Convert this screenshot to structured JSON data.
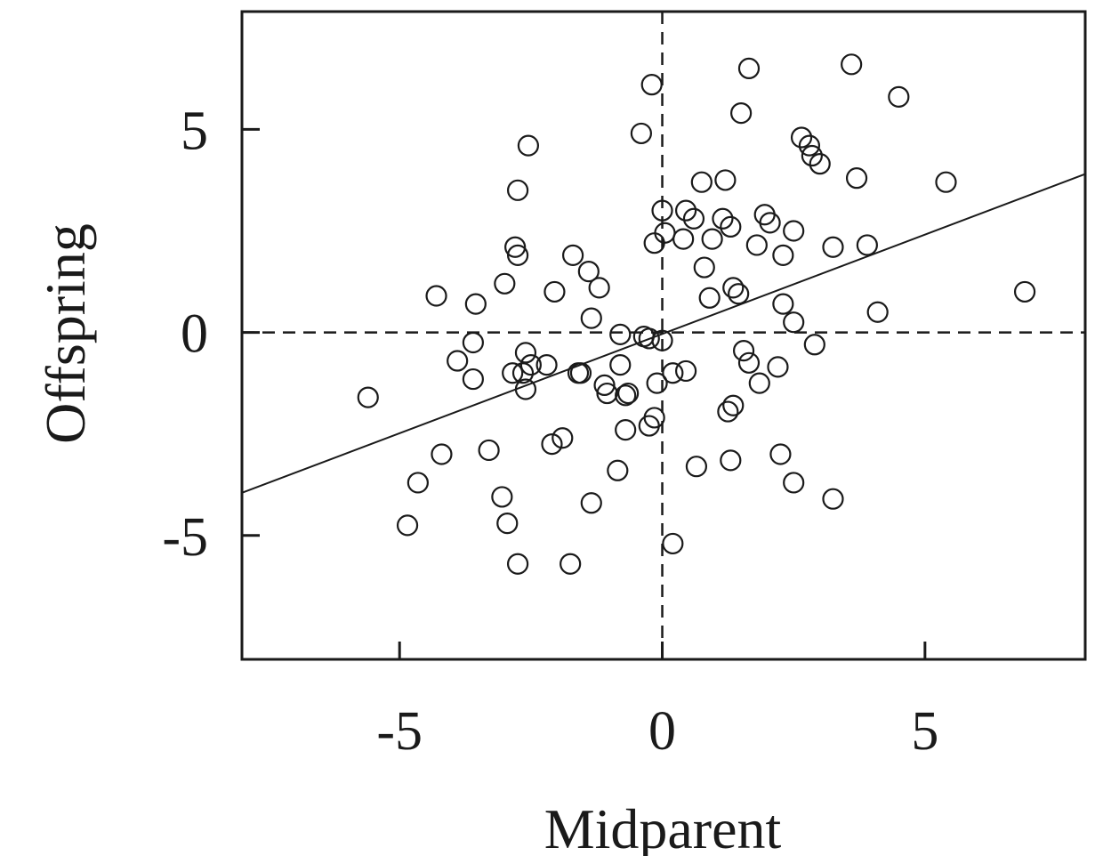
{
  "chart_data": {
    "type": "scatter",
    "title": "",
    "xlabel": "Midparent",
    "ylabel": "Offspring",
    "xlim": [
      -8,
      8.05
    ],
    "ylim": [
      -8.05,
      7.9
    ],
    "xticks": [
      -5,
      0,
      5
    ],
    "yticks": [
      -5,
      0,
      5
    ],
    "xtick_labels": [
      "-5",
      "0",
      "5"
    ],
    "ytick_labels": [
      "-5",
      "0",
      "5"
    ],
    "grid": false,
    "legend": "none",
    "reference_lines": {
      "x": 0,
      "y": 0,
      "style": "dashed"
    },
    "regression_line": {
      "x": [
        -8,
        8.05
      ],
      "y": [
        -3.95,
        3.9
      ]
    },
    "series": [
      {
        "points": [
          [
            -5.6,
            -1.6
          ],
          [
            -4.85,
            -4.75
          ],
          [
            -4.65,
            -3.7
          ],
          [
            -4.3,
            0.9
          ],
          [
            -4.2,
            -3.0
          ],
          [
            -3.9,
            -0.7
          ],
          [
            -3.6,
            -1.15
          ],
          [
            -3.55,
            0.7
          ],
          [
            -3.6,
            -0.25
          ],
          [
            -3.3,
            -2.9
          ],
          [
            -3.05,
            -4.05
          ],
          [
            -2.95,
            -4.7
          ],
          [
            -3.0,
            1.2
          ],
          [
            -2.85,
            -1.0
          ],
          [
            -2.8,
            2.1
          ],
          [
            -2.75,
            1.9
          ],
          [
            -2.75,
            3.5
          ],
          [
            -2.75,
            -5.7
          ],
          [
            -2.65,
            -1.0
          ],
          [
            -2.6,
            -1.4
          ],
          [
            -2.6,
            -0.5
          ],
          [
            -2.55,
            4.6
          ],
          [
            -2.5,
            -0.8
          ],
          [
            -2.2,
            -0.8
          ],
          [
            -2.1,
            -2.75
          ],
          [
            -2.05,
            1.0
          ],
          [
            -1.9,
            -2.6
          ],
          [
            -1.75,
            -5.7
          ],
          [
            -1.7,
            1.9
          ],
          [
            -1.6,
            -1.0
          ],
          [
            -1.55,
            -1.0
          ],
          [
            -1.4,
            1.5
          ],
          [
            -1.35,
            -4.2
          ],
          [
            -1.35,
            0.35
          ],
          [
            -1.2,
            1.1
          ],
          [
            -1.1,
            -1.3
          ],
          [
            -1.05,
            -1.5
          ],
          [
            -0.85,
            -3.4
          ],
          [
            -0.8,
            -0.05
          ],
          [
            -0.8,
            -0.8
          ],
          [
            -0.7,
            -1.55
          ],
          [
            -0.7,
            -2.4
          ],
          [
            -0.65,
            -1.5
          ],
          [
            -0.4,
            4.9
          ],
          [
            -0.35,
            -0.1
          ],
          [
            -0.25,
            -0.15
          ],
          [
            -0.25,
            -2.3
          ],
          [
            -0.2,
            6.1
          ],
          [
            -0.15,
            2.2
          ],
          [
            -0.15,
            -2.1
          ],
          [
            -0.1,
            -1.25
          ],
          [
            0.0,
            3.0
          ],
          [
            0.0,
            -0.2
          ],
          [
            0.05,
            2.45
          ],
          [
            0.2,
            -1.0
          ],
          [
            0.2,
            -5.2
          ],
          [
            0.4,
            2.3
          ],
          [
            0.45,
            -0.95
          ],
          [
            0.45,
            3.0
          ],
          [
            0.6,
            2.8
          ],
          [
            0.65,
            -3.3
          ],
          [
            0.75,
            3.7
          ],
          [
            0.8,
            1.6
          ],
          [
            0.9,
            0.85
          ],
          [
            0.95,
            2.3
          ],
          [
            1.15,
            2.8
          ],
          [
            1.2,
            3.75
          ],
          [
            1.25,
            -1.95
          ],
          [
            1.3,
            -3.15
          ],
          [
            1.3,
            2.6
          ],
          [
            1.35,
            -1.8
          ],
          [
            1.35,
            1.1
          ],
          [
            1.45,
            0.95
          ],
          [
            1.5,
            5.4
          ],
          [
            1.55,
            -0.45
          ],
          [
            1.65,
            -0.75
          ],
          [
            1.65,
            6.5
          ],
          [
            1.8,
            2.15
          ],
          [
            1.85,
            -1.25
          ],
          [
            1.95,
            2.9
          ],
          [
            2.05,
            2.7
          ],
          [
            2.2,
            -0.85
          ],
          [
            2.25,
            -3.0
          ],
          [
            2.3,
            1.9
          ],
          [
            2.3,
            0.7
          ],
          [
            2.5,
            0.25
          ],
          [
            2.5,
            -3.7
          ],
          [
            2.5,
            2.5
          ],
          [
            2.65,
            4.8
          ],
          [
            2.8,
            4.6
          ],
          [
            2.85,
            4.35
          ],
          [
            2.9,
            -0.3
          ],
          [
            3.0,
            4.15
          ],
          [
            3.25,
            2.1
          ],
          [
            3.25,
            -4.1
          ],
          [
            3.6,
            6.6
          ],
          [
            3.7,
            3.8
          ],
          [
            3.9,
            2.15
          ],
          [
            4.1,
            0.5
          ],
          [
            4.5,
            5.8
          ],
          [
            5.4,
            3.7
          ],
          [
            6.9,
            1.0
          ]
        ]
      }
    ]
  }
}
